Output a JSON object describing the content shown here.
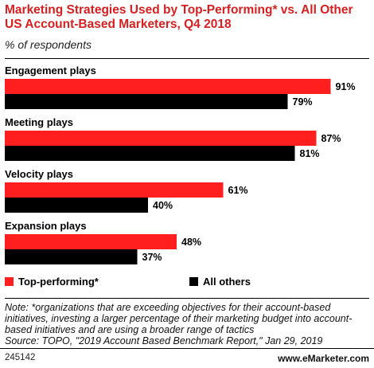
{
  "title": "Marketing Strategies Used by Top-Performing* vs. All Other US Account-Based Marketers, Q4 2018",
  "subtitle": "% of respondents",
  "note": "Note: *organizations that are exceeding objectives for their account-based initiatives, investing a larger percentage of their marketing budget into account-based initiatives and are using a broader range of tactics",
  "source": "Source: TOPO, \"2019 Account Based Benchmark Report,\" Jan 29, 2019",
  "chart_id": "245142",
  "brand": "www.eMarketer.com",
  "colors": {
    "top": "#ff1f1f",
    "others": "#000000",
    "title": "#d61f1f"
  },
  "chart_data": {
    "type": "bar",
    "orientation": "horizontal",
    "categories": [
      "Engagement plays",
      "Meeting plays",
      "Velocity plays",
      "Expansion plays"
    ],
    "series": [
      {
        "name": "Top-performing*",
        "values": [
          91,
          87,
          61,
          48
        ],
        "labels": [
          "91%",
          "87%",
          "61%",
          "48%"
        ]
      },
      {
        "name": "All others",
        "values": [
          79,
          81,
          40,
          37
        ],
        "labels": [
          "79%",
          "81%",
          "40%",
          "37%"
        ]
      }
    ],
    "xlim": [
      0,
      100
    ],
    "grid": false,
    "legend": "bottom"
  }
}
